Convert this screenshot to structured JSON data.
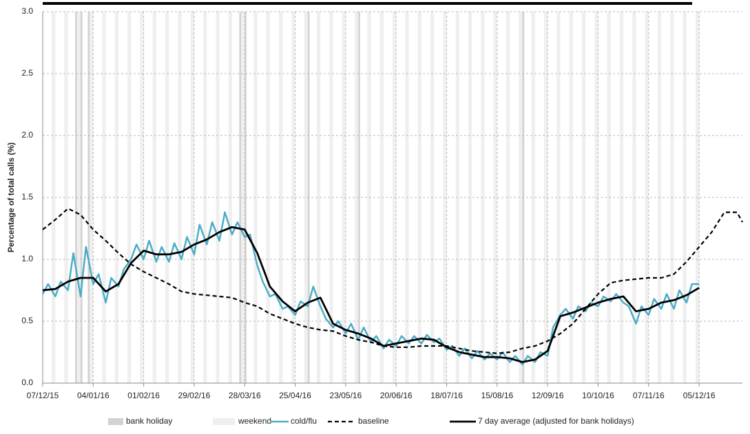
{
  "chart_data": {
    "type": "line",
    "ylabel": "Percentage of total calls (%)",
    "xlim": [
      "07/12/15",
      "29/12/16"
    ],
    "xticks": [
      "07/12/15",
      "04/01/16",
      "01/02/16",
      "29/02/16",
      "28/03/16",
      "25/04/16",
      "23/05/16",
      "20/06/16",
      "18/07/16",
      "15/08/16",
      "12/09/16",
      "10/10/16",
      "07/11/16",
      "05/12/16"
    ],
    "ylim": [
      0,
      3
    ],
    "yticks": [
      {
        "value": 0,
        "label": "0.0"
      },
      0.5,
      {
        "value": 1,
        "label": "1.0"
      },
      1.5,
      {
        "value": 2,
        "label": "2.0"
      },
      2.5,
      {
        "value": 3,
        "label": "3.0"
      }
    ],
    "grid": true,
    "bands": [
      {
        "name": "bank holiday",
        "color": "#d2d2d2",
        "dates": [
          "25/12/15",
          "28/12/15",
          "01/01/16",
          "25/03/16",
          "28/03/16",
          "02/05/16",
          "30/05/16",
          "29/08/16"
        ]
      },
      {
        "name": "weekend",
        "color": "#efefef",
        "dates": [
          "12/12/15",
          "19/12/15",
          "26/12/15",
          "02/01/16",
          "09/01/16",
          "16/01/16",
          "23/01/16",
          "30/01/16",
          "06/02/16",
          "13/02/16",
          "20/02/16",
          "27/02/16",
          "05/03/16",
          "12/03/16",
          "19/03/16",
          "26/03/16",
          "02/04/16",
          "09/04/16",
          "16/04/16",
          "23/04/16",
          "30/04/16",
          "07/05/16",
          "14/05/16",
          "21/05/16",
          "28/05/16",
          "04/06/16",
          "11/06/16",
          "18/06/16",
          "25/06/16",
          "02/07/16",
          "09/07/16",
          "16/07/16",
          "23/07/16",
          "30/07/16",
          "06/08/16",
          "13/08/16",
          "20/08/16",
          "27/08/16",
          "03/09/16",
          "10/09/16",
          "17/09/16",
          "24/09/16",
          "01/10/16",
          "08/10/16",
          "15/10/16",
          "22/10/16",
          "29/10/16",
          "05/11/16",
          "12/11/16",
          "19/11/16",
          "26/11/16",
          "03/12/16"
        ]
      }
    ],
    "series": [
      {
        "name": "cold/flu",
        "color": "#4bacc6",
        "style": "solid",
        "x": [
          "07/12/15",
          "10/12/15",
          "14/12/15",
          "17/12/15",
          "21/12/15",
          "24/12/15",
          "28/12/15",
          "31/12/15",
          "04/01/16",
          "07/01/16",
          "11/01/16",
          "14/01/16",
          "18/01/16",
          "21/01/16",
          "25/01/16",
          "28/01/16",
          "01/02/16",
          "04/02/16",
          "08/02/16",
          "11/02/16",
          "15/02/16",
          "18/02/16",
          "22/02/16",
          "25/02/16",
          "29/02/16",
          "03/03/16",
          "07/03/16",
          "10/03/16",
          "14/03/16",
          "17/03/16",
          "21/03/16",
          "24/03/16",
          "28/03/16",
          "31/03/16",
          "04/04/16",
          "07/04/16",
          "11/04/16",
          "14/04/16",
          "18/04/16",
          "21/04/16",
          "25/04/16",
          "28/04/16",
          "02/05/16",
          "05/05/16",
          "09/05/16",
          "12/05/16",
          "16/05/16",
          "19/05/16",
          "23/05/16",
          "26/05/16",
          "30/05/16",
          "02/06/16",
          "06/06/16",
          "09/06/16",
          "13/06/16",
          "16/06/16",
          "20/06/16",
          "23/06/16",
          "27/06/16",
          "30/06/16",
          "04/07/16",
          "07/07/16",
          "11/07/16",
          "14/07/16",
          "18/07/16",
          "21/07/16",
          "25/07/16",
          "28/07/16",
          "01/08/16",
          "04/08/16",
          "08/08/16",
          "11/08/16",
          "15/08/16",
          "18/08/16",
          "22/08/16",
          "25/08/16",
          "29/08/16",
          "01/09/16",
          "05/09/16",
          "08/09/16",
          "12/09/16",
          "15/09/16",
          "19/09/16",
          "22/09/16",
          "26/09/16",
          "29/09/16",
          "03/10/16",
          "06/10/16",
          "10/10/16",
          "13/10/16",
          "17/10/16",
          "20/10/16",
          "24/10/16",
          "27/10/16",
          "31/10/16",
          "03/11/16",
          "07/11/16",
          "10/11/16",
          "14/11/16",
          "17/11/16",
          "21/11/16",
          "24/11/16",
          "28/11/16",
          "01/12/16",
          "05/12/16"
        ],
        "values": [
          0.72,
          0.8,
          0.7,
          0.82,
          0.75,
          1.05,
          0.7,
          1.1,
          0.8,
          0.88,
          0.65,
          0.85,
          0.78,
          0.92,
          1.0,
          1.12,
          1.0,
          1.15,
          0.98,
          1.1,
          0.98,
          1.13,
          1.0,
          1.18,
          1.04,
          1.28,
          1.12,
          1.3,
          1.15,
          1.38,
          1.2,
          1.3,
          1.18,
          1.2,
          0.95,
          0.82,
          0.7,
          0.72,
          0.6,
          0.62,
          0.55,
          0.66,
          0.62,
          0.78,
          0.62,
          0.52,
          0.45,
          0.5,
          0.4,
          0.48,
          0.35,
          0.45,
          0.33,
          0.38,
          0.28,
          0.35,
          0.3,
          0.38,
          0.32,
          0.38,
          0.32,
          0.39,
          0.33,
          0.36,
          0.27,
          0.3,
          0.22,
          0.28,
          0.2,
          0.26,
          0.19,
          0.24,
          0.19,
          0.25,
          0.17,
          0.22,
          0.15,
          0.22,
          0.17,
          0.25,
          0.22,
          0.45,
          0.55,
          0.6,
          0.52,
          0.62,
          0.58,
          0.65,
          0.62,
          0.7,
          0.66,
          0.72,
          0.65,
          0.62,
          0.48,
          0.62,
          0.55,
          0.68,
          0.6,
          0.72,
          0.6,
          0.75,
          0.65,
          0.8,
          0.8
        ]
      },
      {
        "name": "baseline",
        "color": "#000000",
        "style": "dashed",
        "x": [
          "07/12/15",
          "14/12/15",
          "21/12/15",
          "28/12/15",
          "04/01/16",
          "11/01/16",
          "18/01/16",
          "25/01/16",
          "01/02/16",
          "08/02/16",
          "15/02/16",
          "22/02/16",
          "29/02/16",
          "07/03/16",
          "14/03/16",
          "21/03/16",
          "28/03/16",
          "04/04/16",
          "11/04/16",
          "18/04/16",
          "25/04/16",
          "02/05/16",
          "09/05/16",
          "16/05/16",
          "23/05/16",
          "30/05/16",
          "06/06/16",
          "13/06/16",
          "20/06/16",
          "27/06/16",
          "04/07/16",
          "11/07/16",
          "18/07/16",
          "25/07/16",
          "01/08/16",
          "08/08/16",
          "15/08/16",
          "22/08/16",
          "29/08/16",
          "05/09/16",
          "12/09/16",
          "19/09/16",
          "26/09/16",
          "03/10/16",
          "10/10/16",
          "17/10/16",
          "24/10/16",
          "31/10/16",
          "07/11/16",
          "14/11/16",
          "21/11/16",
          "28/11/16",
          "05/12/16",
          "12/12/16",
          "19/12/16",
          "26/12/16",
          "29/12/16"
        ],
        "values": [
          1.24,
          1.32,
          1.41,
          1.36,
          1.24,
          1.15,
          1.05,
          0.96,
          0.9,
          0.85,
          0.8,
          0.74,
          0.72,
          0.71,
          0.7,
          0.69,
          0.65,
          0.62,
          0.56,
          0.52,
          0.48,
          0.45,
          0.43,
          0.42,
          0.38,
          0.35,
          0.33,
          0.3,
          0.29,
          0.29,
          0.3,
          0.3,
          0.3,
          0.28,
          0.26,
          0.25,
          0.24,
          0.25,
          0.28,
          0.3,
          0.34,
          0.4,
          0.48,
          0.6,
          0.72,
          0.81,
          0.83,
          0.84,
          0.85,
          0.85,
          0.88,
          0.98,
          1.1,
          1.22,
          1.38,
          1.38,
          1.3
        ]
      },
      {
        "name": "7 day average (adjusted for bank holidays)",
        "color": "#000000",
        "style": "thick",
        "x": [
          "07/12/15",
          "14/12/15",
          "21/12/15",
          "28/12/15",
          "04/01/16",
          "11/01/16",
          "18/01/16",
          "25/01/16",
          "01/02/16",
          "08/02/16",
          "15/02/16",
          "22/02/16",
          "29/02/16",
          "07/03/16",
          "14/03/16",
          "21/03/16",
          "28/03/16",
          "04/04/16",
          "11/04/16",
          "18/04/16",
          "25/04/16",
          "02/05/16",
          "09/05/16",
          "16/05/16",
          "23/05/16",
          "30/05/16",
          "06/06/16",
          "13/06/16",
          "20/06/16",
          "27/06/16",
          "04/07/16",
          "11/07/16",
          "18/07/16",
          "25/07/16",
          "01/08/16",
          "08/08/16",
          "15/08/16",
          "22/08/16",
          "29/08/16",
          "05/09/16",
          "12/09/16",
          "19/09/16",
          "26/09/16",
          "03/10/16",
          "10/10/16",
          "17/10/16",
          "24/10/16",
          "31/10/16",
          "07/11/16",
          "14/11/16",
          "21/11/16",
          "28/11/16",
          "05/12/16"
        ],
        "values": [
          0.75,
          0.76,
          0.82,
          0.85,
          0.85,
          0.74,
          0.8,
          0.97,
          1.07,
          1.04,
          1.04,
          1.06,
          1.12,
          1.16,
          1.22,
          1.26,
          1.24,
          1.05,
          0.78,
          0.66,
          0.58,
          0.65,
          0.69,
          0.48,
          0.43,
          0.4,
          0.36,
          0.3,
          0.32,
          0.34,
          0.36,
          0.35,
          0.29,
          0.25,
          0.23,
          0.21,
          0.21,
          0.2,
          0.17,
          0.19,
          0.26,
          0.54,
          0.57,
          0.61,
          0.65,
          0.68,
          0.7,
          0.58,
          0.6,
          0.65,
          0.67,
          0.71,
          0.77
        ]
      }
    ]
  }
}
